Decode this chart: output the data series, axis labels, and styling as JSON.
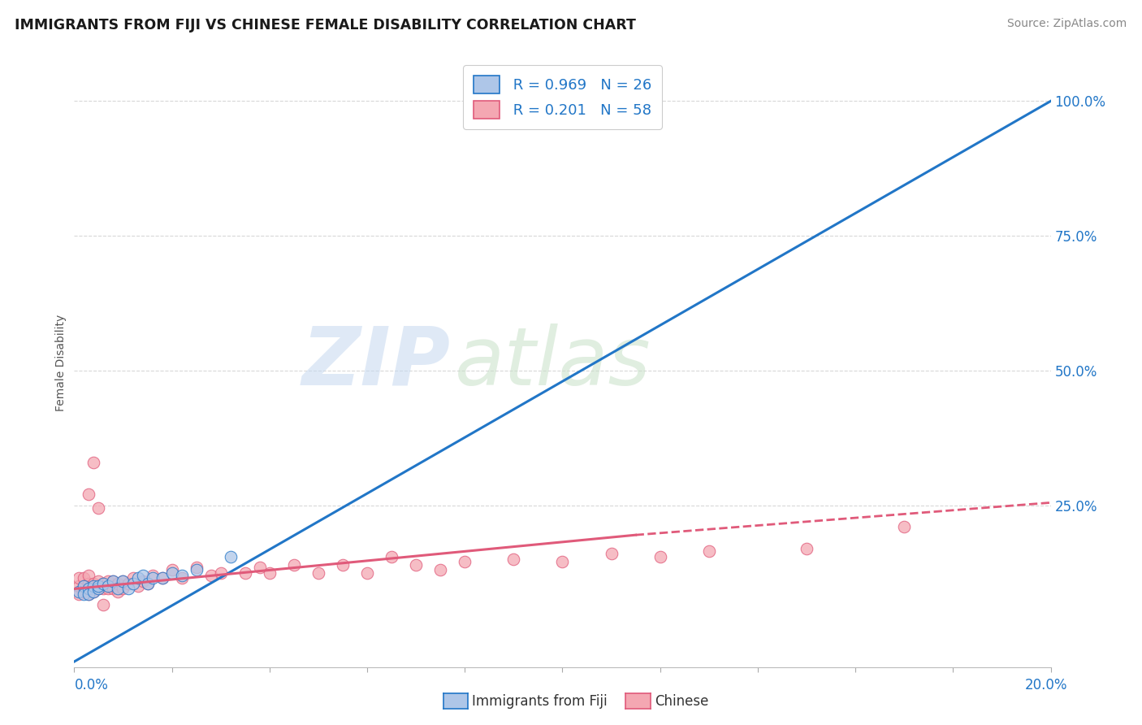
{
  "title": "IMMIGRANTS FROM FIJI VS CHINESE FEMALE DISABILITY CORRELATION CHART",
  "source": "Source: ZipAtlas.com",
  "ylabel": "Female Disability",
  "ytick_labels": [
    "",
    "25.0%",
    "50.0%",
    "75.0%",
    "100.0%"
  ],
  "ytick_values": [
    0.0,
    0.25,
    0.5,
    0.75,
    1.0
  ],
  "xlim": [
    0.0,
    0.2
  ],
  "ylim": [
    -0.05,
    1.08
  ],
  "fiji_R": 0.969,
  "fiji_N": 26,
  "chinese_R": 0.201,
  "chinese_N": 58,
  "fiji_color": "#aec6e8",
  "fiji_line_color": "#2176c7",
  "chinese_color": "#f4a7b2",
  "chinese_line_color": "#e05a7a",
  "watermark_zip": "ZIP",
  "watermark_atlas": "atlas",
  "background_color": "#ffffff",
  "grid_color": "#c8c8c8",
  "fiji_line_x0": 0.0,
  "fiji_line_y0": -0.04,
  "fiji_line_x1": 0.2,
  "fiji_line_y1": 1.0,
  "chinese_line_solid_x0": 0.0,
  "chinese_line_solid_y0": 0.095,
  "chinese_line_solid_x1": 0.115,
  "chinese_line_solid_y1": 0.195,
  "chinese_line_dash_x0": 0.115,
  "chinese_line_dash_y0": 0.195,
  "chinese_line_dash_x1": 0.2,
  "chinese_line_dash_y1": 0.255,
  "fiji_scatter_x": [
    0.001,
    0.002,
    0.002,
    0.003,
    0.003,
    0.004,
    0.004,
    0.005,
    0.005,
    0.006,
    0.007,
    0.008,
    0.009,
    0.01,
    0.011,
    0.012,
    0.013,
    0.014,
    0.015,
    0.016,
    0.018,
    0.02,
    0.022,
    0.025,
    0.032,
    0.095
  ],
  "fiji_scatter_y": [
    0.09,
    0.1,
    0.085,
    0.095,
    0.085,
    0.1,
    0.09,
    0.095,
    0.1,
    0.105,
    0.1,
    0.11,
    0.095,
    0.11,
    0.095,
    0.105,
    0.115,
    0.12,
    0.105,
    0.115,
    0.115,
    0.125,
    0.12,
    0.13,
    0.155,
    1.0
  ],
  "chinese_scatter_x": [
    0.001,
    0.001,
    0.001,
    0.002,
    0.002,
    0.002,
    0.003,
    0.003,
    0.003,
    0.003,
    0.004,
    0.004,
    0.005,
    0.005,
    0.006,
    0.006,
    0.007,
    0.007,
    0.008,
    0.008,
    0.009,
    0.009,
    0.01,
    0.01,
    0.011,
    0.012,
    0.013,
    0.014,
    0.015,
    0.016,
    0.018,
    0.02,
    0.022,
    0.025,
    0.028,
    0.03,
    0.035,
    0.038,
    0.04,
    0.045,
    0.05,
    0.055,
    0.06,
    0.065,
    0.07,
    0.075,
    0.08,
    0.09,
    0.1,
    0.11,
    0.12,
    0.13,
    0.15,
    0.17,
    0.003,
    0.004,
    0.005,
    0.006
  ],
  "chinese_scatter_y": [
    0.085,
    0.1,
    0.115,
    0.09,
    0.1,
    0.115,
    0.085,
    0.095,
    0.105,
    0.12,
    0.09,
    0.105,
    0.095,
    0.11,
    0.095,
    0.105,
    0.095,
    0.11,
    0.095,
    0.11,
    0.09,
    0.105,
    0.095,
    0.11,
    0.105,
    0.115,
    0.1,
    0.11,
    0.105,
    0.12,
    0.115,
    0.13,
    0.115,
    0.135,
    0.12,
    0.125,
    0.125,
    0.135,
    0.125,
    0.14,
    0.125,
    0.14,
    0.125,
    0.155,
    0.14,
    0.13,
    0.145,
    0.15,
    0.145,
    0.16,
    0.155,
    0.165,
    0.17,
    0.21,
    0.27,
    0.33,
    0.245,
    0.065
  ]
}
